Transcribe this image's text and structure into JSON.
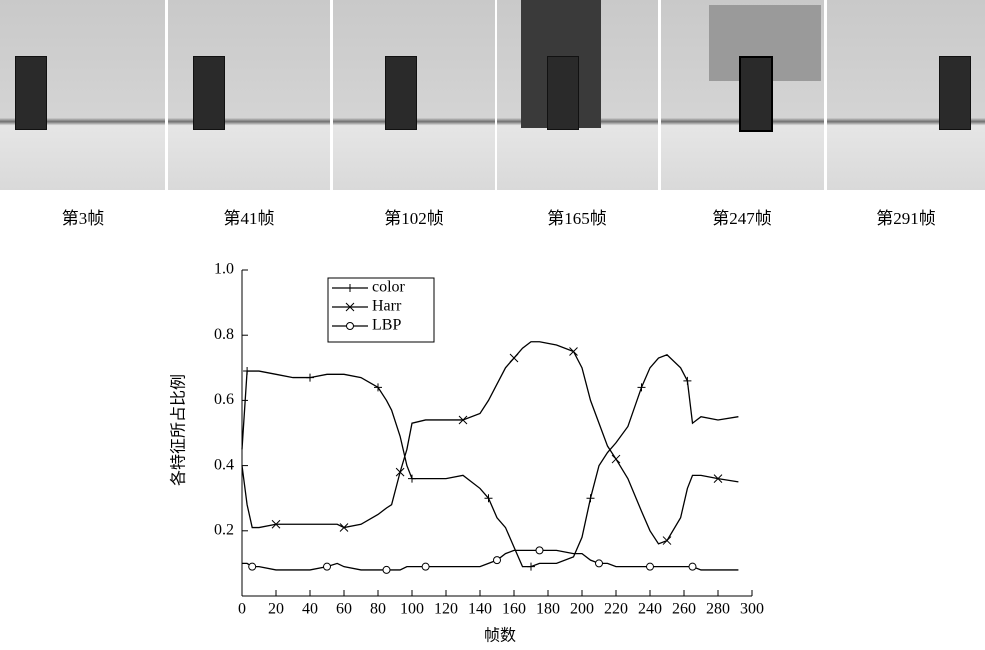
{
  "frames": [
    {
      "caption": "第3帧"
    },
    {
      "caption": "第41帧"
    },
    {
      "caption": "第102帧"
    },
    {
      "caption": "第165帧"
    },
    {
      "caption": "第247帧"
    },
    {
      "caption": "第291帧"
    }
  ],
  "chart_data": {
    "type": "line",
    "x_label": "帧数",
    "y_label": "各特征所占比例",
    "x": [
      0,
      3,
      6,
      10,
      20,
      30,
      40,
      50,
      56,
      60,
      70,
      80,
      85,
      88,
      93,
      97,
      100,
      108,
      120,
      130,
      140,
      145,
      150,
      155,
      160,
      165,
      170,
      175,
      185,
      195,
      200,
      205,
      210,
      215,
      220,
      227,
      235,
      240,
      245,
      250,
      258,
      262,
      265,
      270,
      280,
      292
    ],
    "series": [
      {
        "name": "color",
        "color": "#000000",
        "marker": "plus",
        "values": [
          0.45,
          0.69,
          0.69,
          0.69,
          0.68,
          0.67,
          0.67,
          0.68,
          0.68,
          0.68,
          0.67,
          0.64,
          0.6,
          0.57,
          0.49,
          0.4,
          0.36,
          0.36,
          0.36,
          0.37,
          0.33,
          0.3,
          0.24,
          0.21,
          0.15,
          0.09,
          0.09,
          0.1,
          0.1,
          0.12,
          0.18,
          0.3,
          0.4,
          0.44,
          0.47,
          0.52,
          0.64,
          0.7,
          0.73,
          0.74,
          0.7,
          0.66,
          0.53,
          0.55,
          0.54,
          0.55
        ]
      },
      {
        "name": "Harr",
        "color": "#000000",
        "marker": "cross",
        "values": [
          0.4,
          0.28,
          0.21,
          0.21,
          0.22,
          0.22,
          0.22,
          0.22,
          0.22,
          0.21,
          0.22,
          0.25,
          0.27,
          0.28,
          0.38,
          0.45,
          0.53,
          0.54,
          0.54,
          0.54,
          0.56,
          0.6,
          0.65,
          0.7,
          0.73,
          0.76,
          0.78,
          0.78,
          0.77,
          0.75,
          0.7,
          0.6,
          0.53,
          0.46,
          0.42,
          0.36,
          0.26,
          0.2,
          0.16,
          0.17,
          0.24,
          0.33,
          0.37,
          0.37,
          0.36,
          0.35
        ]
      },
      {
        "name": "LBP",
        "color": "#000000",
        "marker": "circle",
        "values": [
          0.1,
          0.1,
          0.09,
          0.09,
          0.08,
          0.08,
          0.08,
          0.09,
          0.1,
          0.09,
          0.08,
          0.08,
          0.08,
          0.08,
          0.08,
          0.09,
          0.09,
          0.09,
          0.09,
          0.09,
          0.09,
          0.1,
          0.11,
          0.13,
          0.14,
          0.14,
          0.14,
          0.14,
          0.14,
          0.13,
          0.13,
          0.11,
          0.1,
          0.1,
          0.09,
          0.09,
          0.09,
          0.09,
          0.09,
          0.09,
          0.09,
          0.09,
          0.09,
          0.08,
          0.08,
          0.08
        ]
      }
    ],
    "xlim": [
      0,
      300
    ],
    "ylim": [
      0,
      1.0
    ],
    "xticks": [
      0,
      20,
      40,
      60,
      80,
      100,
      120,
      140,
      160,
      180,
      200,
      220,
      240,
      260,
      280,
      300
    ],
    "yticks": [
      0.2,
      0.4,
      0.6,
      0.8,
      {
        "value": 1.0,
        "label": "1.0"
      }
    ],
    "legend": "upper-left"
  }
}
